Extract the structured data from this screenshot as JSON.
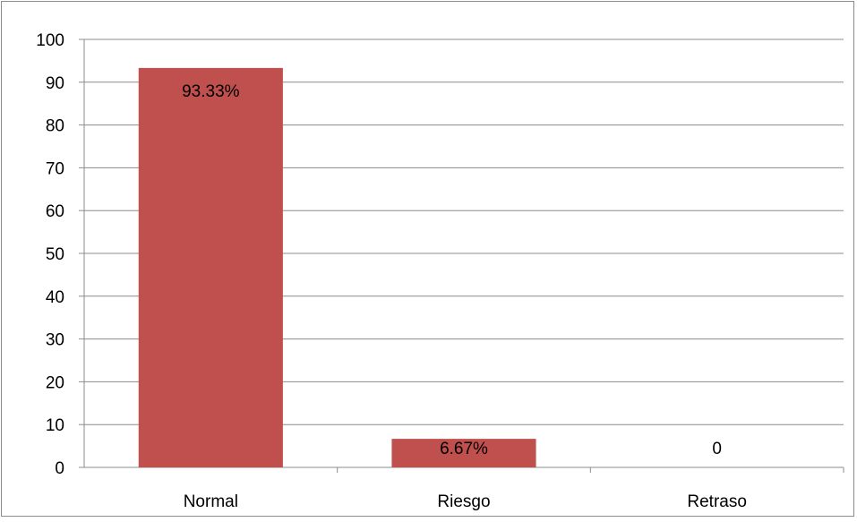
{
  "chart_data": {
    "type": "bar",
    "categories": [
      "Normal",
      "Riesgo",
      "Retraso"
    ],
    "values": [
      93.33,
      6.67,
      0
    ],
    "data_labels": [
      "93.33%",
      "6.67%",
      "0"
    ],
    "ylim": [
      0,
      100
    ],
    "yticks": [
      "0",
      "10",
      "20",
      "30",
      "40",
      "50",
      "60",
      "70",
      "80",
      "90",
      "100"
    ],
    "title": "",
    "xlabel": "",
    "ylabel": "",
    "grid": true,
    "legend": "none",
    "colors": {
      "bar": "#c0504d",
      "grid": "#8c8c8c",
      "text": "#000000"
    }
  }
}
